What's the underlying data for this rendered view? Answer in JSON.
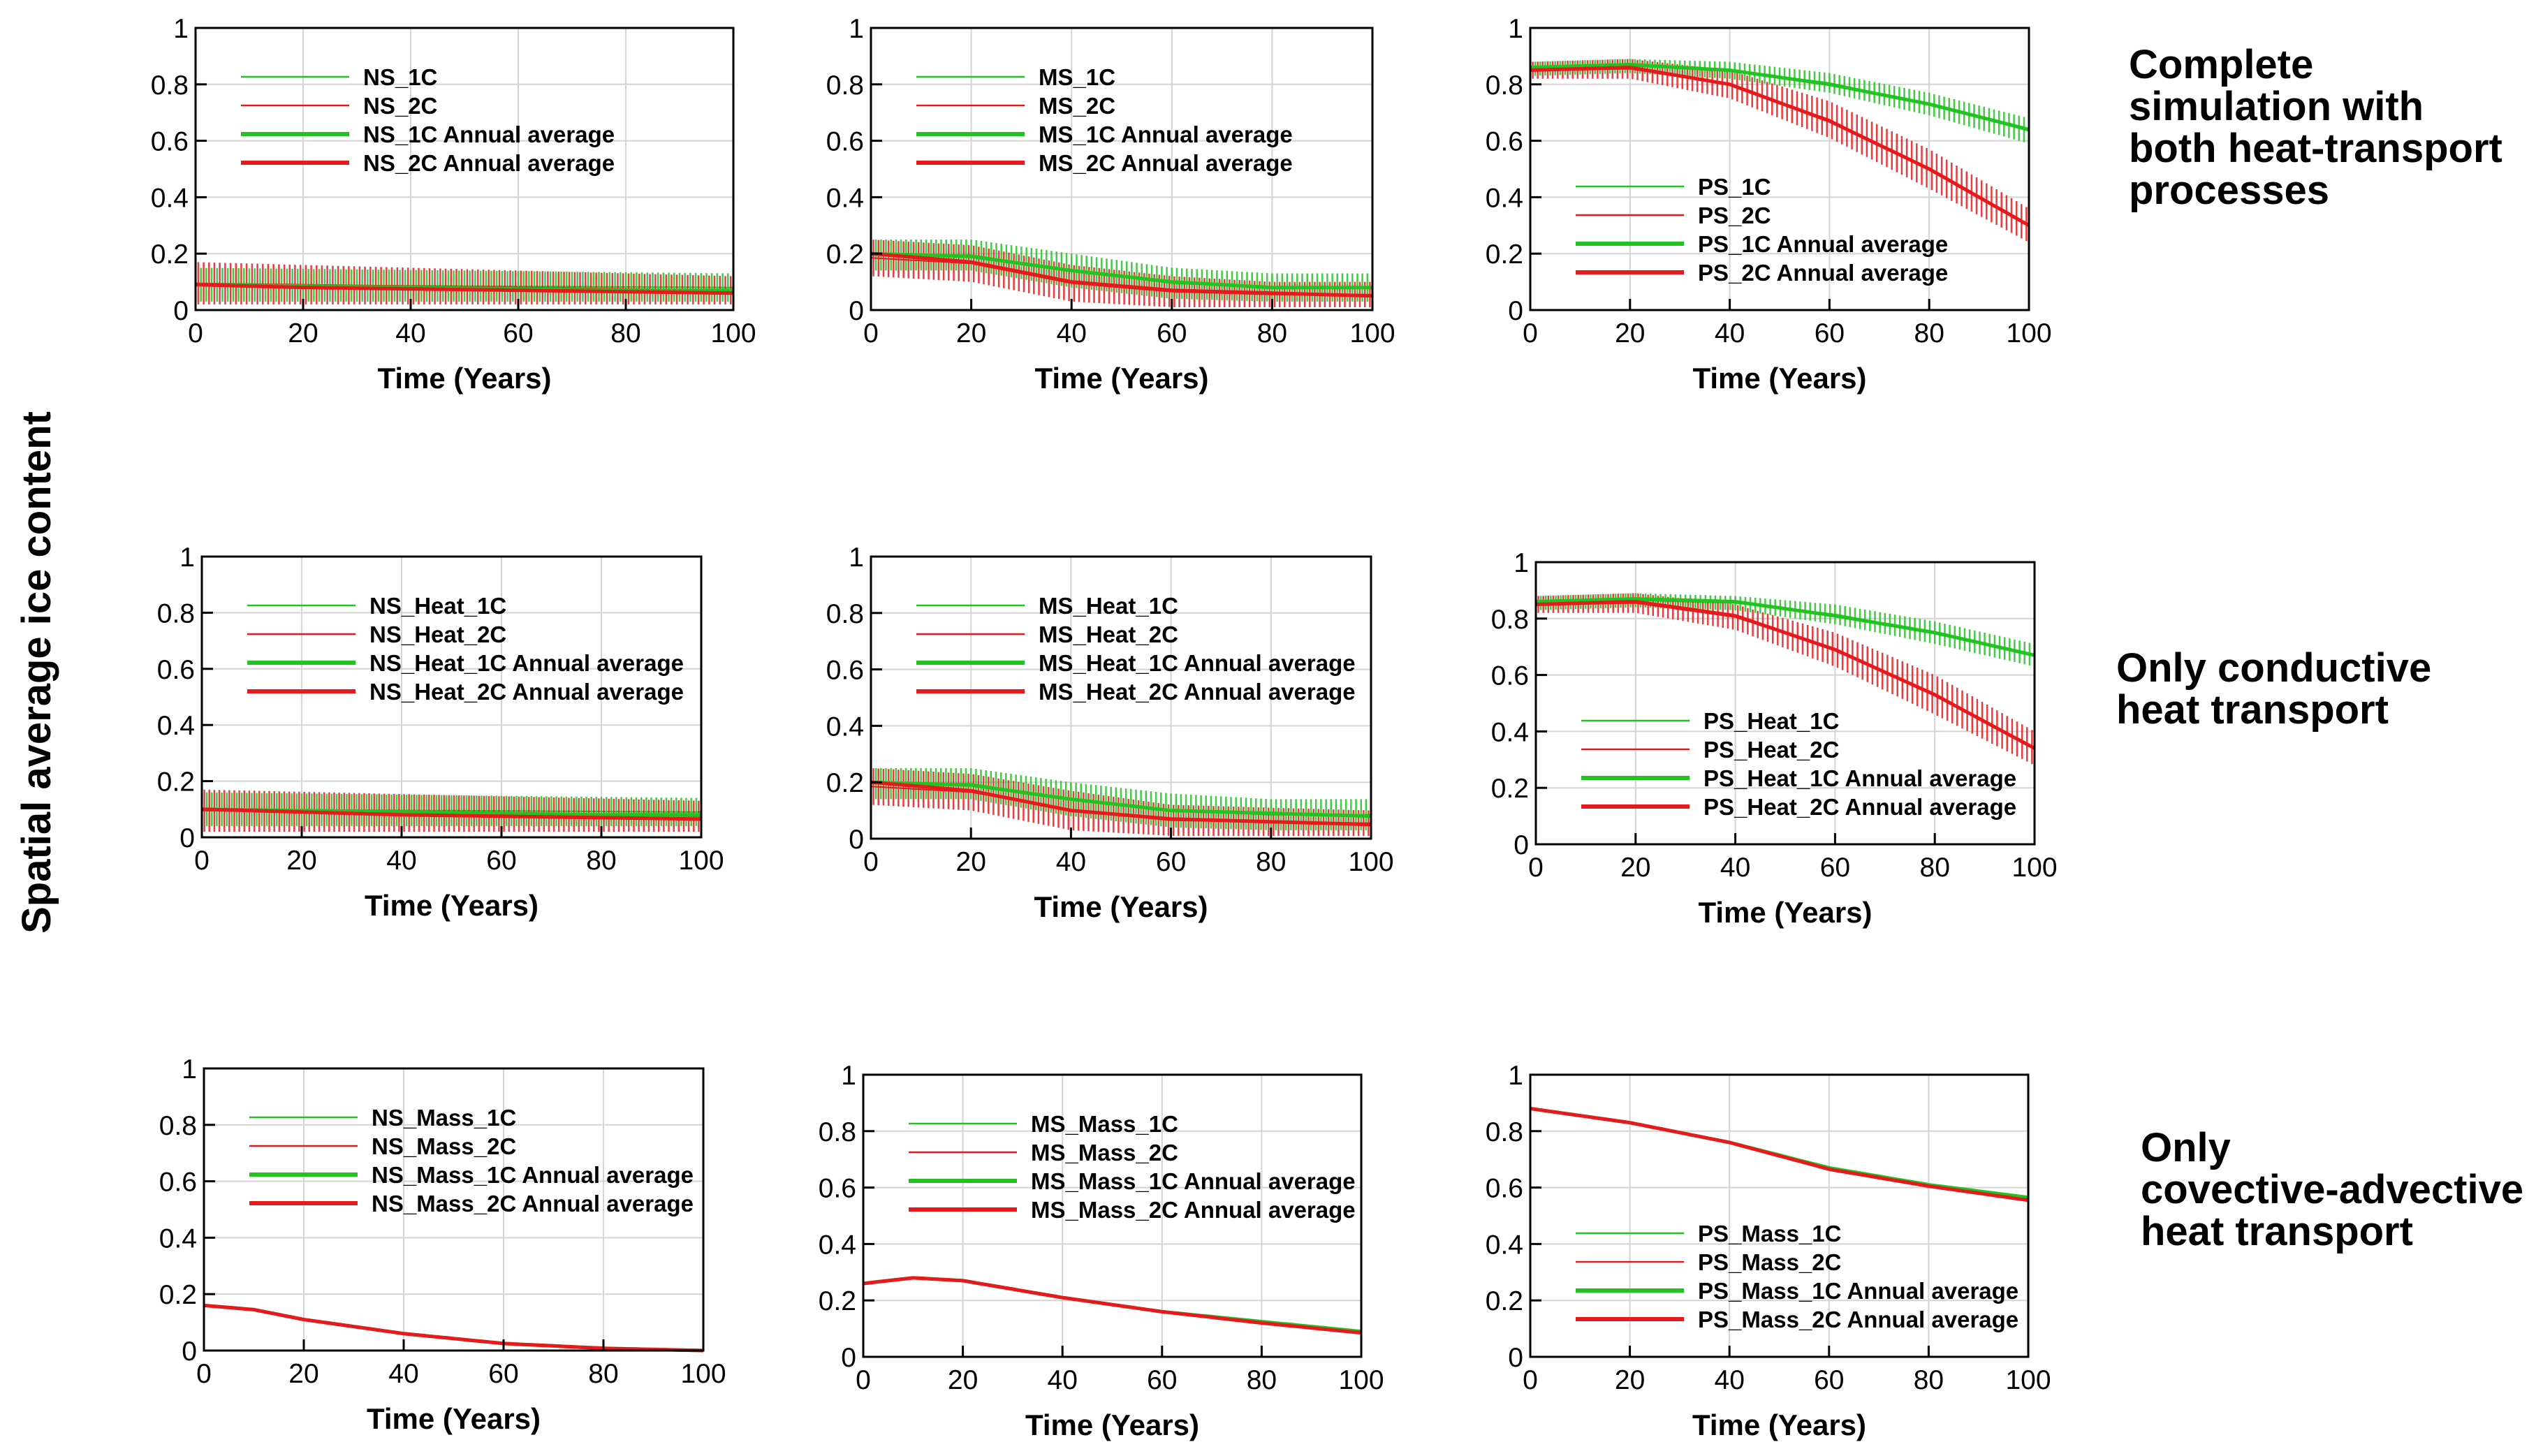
{
  "y_axis_label": "Spatial average ice content",
  "colors": {
    "one_c": "#21c321",
    "two_c": "#e8191c",
    "axis": "#000000",
    "grid": "#d4d4d4"
  },
  "row_labels": [
    [
      "Complete",
      "simulation with",
      "both heat-transport",
      "processes"
    ],
    [
      "Only conductive",
      "heat transport"
    ],
    [
      "Only",
      "covective-advective",
      "heat transport"
    ]
  ],
  "chart_data": [
    {
      "type": "line",
      "xlabel": "Time (Years)",
      "xlim": [
        0,
        100
      ],
      "ylim": [
        0,
        1
      ],
      "xticks": [
        "0",
        "20",
        "40",
        "60",
        "80",
        "100"
      ],
      "yticks": [
        "0",
        "0.2",
        "0.4",
        "0.6",
        "0.8",
        "1"
      ],
      "legend": [
        "NS_1C",
        "NS_2C",
        "NS_1C Annual average",
        "NS_2C Annual average"
      ],
      "legend_position": "top-left",
      "series": [
        {
          "name": "NS_1C",
          "x": [
            0,
            100
          ],
          "y_min": [
            0.03,
            0.03
          ],
          "y_max": [
            0.15,
            0.13
          ]
        },
        {
          "name": "NS_2C",
          "x": [
            0,
            100
          ],
          "y_min": [
            0.02,
            0.02
          ],
          "y_max": [
            0.17,
            0.12
          ]
        },
        {
          "name": "NS_1C Annual average",
          "x": [
            0,
            20,
            40,
            60,
            80,
            100
          ],
          "y": [
            0.09,
            0.085,
            0.08,
            0.075,
            0.07,
            0.07
          ]
        },
        {
          "name": "NS_2C Annual average",
          "x": [
            0,
            20,
            40,
            60,
            80,
            100
          ],
          "y": [
            0.09,
            0.08,
            0.075,
            0.07,
            0.065,
            0.06
          ]
        }
      ]
    },
    {
      "type": "line",
      "xlabel": "Time (Years)",
      "xlim": [
        0,
        100
      ],
      "ylim": [
        0,
        1
      ],
      "xticks": [
        "0",
        "20",
        "40",
        "60",
        "80",
        "100"
      ],
      "yticks": [
        "0",
        "0.2",
        "0.4",
        "0.6",
        "0.8",
        "1"
      ],
      "legend": [
        "MS_1C",
        "MS_2C",
        "MS_1C Annual average",
        "MS_2C Annual average"
      ],
      "legend_position": "top-left",
      "series": [
        {
          "name": "MS_1C",
          "x": [
            0,
            20,
            40,
            60,
            80,
            100
          ],
          "y_min": [
            0.14,
            0.14,
            0.08,
            0.04,
            0.03,
            0.03
          ],
          "y_max": [
            0.25,
            0.25,
            0.2,
            0.15,
            0.13,
            0.13
          ]
        },
        {
          "name": "MS_2C",
          "x": [
            0,
            20,
            40,
            60,
            80,
            100
          ],
          "y_min": [
            0.12,
            0.1,
            0.03,
            0.01,
            0.01,
            0.01
          ],
          "y_max": [
            0.25,
            0.23,
            0.16,
            0.12,
            0.1,
            0.1
          ]
        },
        {
          "name": "MS_1C Annual average",
          "x": [
            0,
            20,
            40,
            60,
            80,
            100
          ],
          "y": [
            0.2,
            0.19,
            0.14,
            0.1,
            0.08,
            0.08
          ]
        },
        {
          "name": "MS_2C Annual average",
          "x": [
            0,
            20,
            40,
            60,
            80,
            100
          ],
          "y": [
            0.2,
            0.17,
            0.1,
            0.07,
            0.06,
            0.05
          ]
        }
      ]
    },
    {
      "type": "line",
      "xlabel": "Time (Years)",
      "xlim": [
        0,
        100
      ],
      "ylim": [
        0,
        1
      ],
      "xticks": [
        "0",
        "20",
        "40",
        "60",
        "80",
        "100"
      ],
      "yticks": [
        "0",
        "0.2",
        "0.4",
        "0.6",
        "0.8",
        "1"
      ],
      "legend": [
        "PS_1C",
        "PS_2C",
        "PS_1C Annual average",
        "PS_2C Annual average"
      ],
      "legend_position": "bottom-left",
      "series": [
        {
          "name": "PS_1C",
          "x": [
            0,
            20,
            40,
            60,
            80,
            100
          ],
          "y_min": [
            0.83,
            0.84,
            0.82,
            0.77,
            0.69,
            0.59
          ],
          "y_max": [
            0.88,
            0.89,
            0.88,
            0.84,
            0.77,
            0.68
          ]
        },
        {
          "name": "PS_2C",
          "x": [
            0,
            20,
            40,
            60,
            80,
            100
          ],
          "y_min": [
            0.82,
            0.82,
            0.75,
            0.61,
            0.43,
            0.24
          ],
          "y_max": [
            0.88,
            0.89,
            0.85,
            0.74,
            0.57,
            0.36
          ]
        },
        {
          "name": "PS_1C Annual average",
          "x": [
            0,
            20,
            40,
            60,
            80,
            100
          ],
          "y": [
            0.86,
            0.87,
            0.85,
            0.8,
            0.73,
            0.64
          ]
        },
        {
          "name": "PS_2C Annual average",
          "x": [
            0,
            20,
            40,
            60,
            80,
            100
          ],
          "y": [
            0.85,
            0.86,
            0.8,
            0.67,
            0.5,
            0.3
          ]
        }
      ]
    },
    {
      "type": "line",
      "xlabel": "Time (Years)",
      "xlim": [
        0,
        100
      ],
      "ylim": [
        0,
        1
      ],
      "xticks": [
        "0",
        "20",
        "40",
        "60",
        "80",
        "100"
      ],
      "yticks": [
        "0",
        "0.2",
        "0.4",
        "0.6",
        "0.8",
        "1"
      ],
      "legend": [
        "NS_Heat_1C",
        "NS_Heat_2C",
        "NS_Heat_1C Annual average",
        "NS_Heat_2C Annual average"
      ],
      "legend_position": "top-left",
      "series": [
        {
          "name": "NS_Heat_1C",
          "x": [
            0,
            100
          ],
          "y_min": [
            0.04,
            0.04
          ],
          "y_max": [
            0.16,
            0.14
          ]
        },
        {
          "name": "NS_Heat_2C",
          "x": [
            0,
            100
          ],
          "y_min": [
            0.02,
            0.02
          ],
          "y_max": [
            0.17,
            0.13
          ]
        },
        {
          "name": "NS_Heat_1C Annual average",
          "x": [
            0,
            20,
            40,
            60,
            80,
            100
          ],
          "y": [
            0.1,
            0.095,
            0.09,
            0.085,
            0.08,
            0.08
          ]
        },
        {
          "name": "NS_Heat_2C Annual average",
          "x": [
            0,
            20,
            40,
            60,
            80,
            100
          ],
          "y": [
            0.1,
            0.09,
            0.08,
            0.075,
            0.07,
            0.065
          ]
        }
      ]
    },
    {
      "type": "line",
      "xlabel": "Time (Years)",
      "xlim": [
        0,
        100
      ],
      "ylim": [
        0,
        1
      ],
      "xticks": [
        "0",
        "20",
        "40",
        "60",
        "80",
        "100"
      ],
      "yticks": [
        "0",
        "0.2",
        "0.4",
        "0.6",
        "0.8",
        "1"
      ],
      "legend": [
        "MS_Heat_1C",
        "MS_Heat_2C",
        "MS_Heat_1C Annual average",
        "MS_Heat_2C Annual average"
      ],
      "legend_position": "top-left",
      "series": [
        {
          "name": "MS_Heat_1C",
          "x": [
            0,
            20,
            40,
            60,
            80,
            100
          ],
          "y_min": [
            0.14,
            0.14,
            0.08,
            0.04,
            0.03,
            0.03
          ],
          "y_max": [
            0.25,
            0.25,
            0.2,
            0.16,
            0.14,
            0.14
          ]
        },
        {
          "name": "MS_Heat_2C",
          "x": [
            0,
            20,
            40,
            60,
            80,
            100
          ],
          "y_min": [
            0.12,
            0.1,
            0.03,
            0.01,
            0.01,
            0.01
          ],
          "y_max": [
            0.25,
            0.23,
            0.17,
            0.12,
            0.11,
            0.1
          ]
        },
        {
          "name": "MS_Heat_1C Annual average",
          "x": [
            0,
            20,
            40,
            60,
            80,
            100
          ],
          "y": [
            0.2,
            0.19,
            0.14,
            0.1,
            0.09,
            0.08
          ]
        },
        {
          "name": "MS_Heat_2C Annual average",
          "x": [
            0,
            20,
            40,
            60,
            80,
            100
          ],
          "y": [
            0.2,
            0.17,
            0.1,
            0.07,
            0.06,
            0.05
          ]
        }
      ]
    },
    {
      "type": "line",
      "xlabel": "Time (Years)",
      "xlim": [
        0,
        100
      ],
      "ylim": [
        0,
        1
      ],
      "xticks": [
        "0",
        "20",
        "40",
        "60",
        "80",
        "100"
      ],
      "yticks": [
        "0",
        "0.2",
        "0.4",
        "0.6",
        "0.8",
        "1"
      ],
      "legend": [
        "PS_Heat_1C",
        "PS_Heat_2C",
        "PS_Heat_1C Annual average",
        "PS_Heat_2C Annual average"
      ],
      "legend_position": "bottom-left",
      "series": [
        {
          "name": "PS_Heat_1C",
          "x": [
            0,
            20,
            40,
            60,
            80,
            100
          ],
          "y_min": [
            0.83,
            0.84,
            0.83,
            0.78,
            0.71,
            0.63
          ],
          "y_max": [
            0.88,
            0.89,
            0.88,
            0.85,
            0.79,
            0.71
          ]
        },
        {
          "name": "PS_Heat_2C",
          "x": [
            0,
            20,
            40,
            60,
            80,
            100
          ],
          "y_min": [
            0.82,
            0.82,
            0.76,
            0.63,
            0.46,
            0.28
          ],
          "y_max": [
            0.88,
            0.89,
            0.85,
            0.75,
            0.6,
            0.4
          ]
        },
        {
          "name": "PS_Heat_1C Annual average",
          "x": [
            0,
            20,
            40,
            60,
            80,
            100
          ],
          "y": [
            0.86,
            0.87,
            0.86,
            0.81,
            0.75,
            0.67
          ]
        },
        {
          "name": "PS_Heat_2C Annual average",
          "x": [
            0,
            20,
            40,
            60,
            80,
            100
          ],
          "y": [
            0.85,
            0.86,
            0.81,
            0.69,
            0.53,
            0.34
          ]
        }
      ]
    },
    {
      "type": "line",
      "xlabel": "Time (Years)",
      "xlim": [
        0,
        100
      ],
      "ylim": [
        0,
        1
      ],
      "xticks": [
        "0",
        "20",
        "40",
        "60",
        "80",
        "100"
      ],
      "yticks": [
        "0",
        "0.2",
        "0.4",
        "0.6",
        "0.8",
        "1"
      ],
      "legend": [
        "NS_Mass_1C",
        "NS_Mass_2C",
        "NS_Mass_1C Annual average",
        "NS_Mass_2C Annual average"
      ],
      "legend_position": "top-left",
      "series": [
        {
          "name": "NS_Mass_1C",
          "x": [
            0,
            10,
            20,
            40,
            60,
            80,
            100
          ],
          "y": [
            0.16,
            0.145,
            0.11,
            0.06,
            0.025,
            0.008,
            0.0
          ]
        },
        {
          "name": "NS_Mass_2C",
          "x": [
            0,
            10,
            20,
            40,
            60,
            80,
            100
          ],
          "y": [
            0.16,
            0.145,
            0.11,
            0.06,
            0.025,
            0.008,
            0.0
          ]
        },
        {
          "name": "NS_Mass_1C Annual average",
          "x": [
            0,
            10,
            20,
            40,
            60,
            80,
            100
          ],
          "y": [
            0.16,
            0.145,
            0.11,
            0.06,
            0.025,
            0.008,
            0.0
          ]
        },
        {
          "name": "NS_Mass_2C Annual average",
          "x": [
            0,
            10,
            20,
            40,
            60,
            80,
            100
          ],
          "y": [
            0.16,
            0.145,
            0.11,
            0.06,
            0.025,
            0.008,
            0.0
          ]
        }
      ]
    },
    {
      "type": "line",
      "xlabel": "Time (Years)",
      "xlim": [
        0,
        100
      ],
      "ylim": [
        0,
        1
      ],
      "xticks": [
        "0",
        "20",
        "40",
        "60",
        "80",
        "100"
      ],
      "yticks": [
        "0",
        "0.2",
        "0.4",
        "0.6",
        "0.8",
        "1"
      ],
      "legend": [
        "MS_Mass_1C",
        "MS_Mass_2C",
        "MS_Mass_1C Annual average",
        "MS_Mass_2C Annual average"
      ],
      "legend_position": "top-left",
      "series": [
        {
          "name": "MS_Mass_1C",
          "x": [
            0,
            10,
            20,
            40,
            60,
            80,
            100
          ],
          "y": [
            0.26,
            0.28,
            0.27,
            0.21,
            0.16,
            0.125,
            0.09
          ]
        },
        {
          "name": "MS_Mass_2C",
          "x": [
            0,
            10,
            20,
            40,
            60,
            80,
            100
          ],
          "y": [
            0.26,
            0.28,
            0.27,
            0.21,
            0.16,
            0.12,
            0.085
          ]
        },
        {
          "name": "MS_Mass_1C Annual average",
          "x": [
            0,
            10,
            20,
            40,
            60,
            80,
            100
          ],
          "y": [
            0.26,
            0.28,
            0.27,
            0.21,
            0.16,
            0.125,
            0.09
          ]
        },
        {
          "name": "MS_Mass_2C Annual average",
          "x": [
            0,
            10,
            20,
            40,
            60,
            80,
            100
          ],
          "y": [
            0.26,
            0.28,
            0.27,
            0.21,
            0.16,
            0.12,
            0.085
          ]
        }
      ]
    },
    {
      "type": "line",
      "xlabel": "Time (Years)",
      "xlim": [
        0,
        100
      ],
      "ylim": [
        0,
        1
      ],
      "xticks": [
        "0",
        "20",
        "40",
        "60",
        "80",
        "100"
      ],
      "yticks": [
        "0",
        "0.2",
        "0.4",
        "0.6",
        "0.8",
        "1"
      ],
      "legend": [
        "PS_Mass_1C",
        "PS_Mass_2C",
        "PS_Mass_1C Annual average",
        "PS_Mass_2C Annual average"
      ],
      "legend_position": "bottom-left",
      "series": [
        {
          "name": "PS_Mass_1C",
          "x": [
            0,
            20,
            40,
            60,
            80,
            100
          ],
          "y": [
            0.88,
            0.83,
            0.76,
            0.67,
            0.61,
            0.565
          ]
        },
        {
          "name": "PS_Mass_2C",
          "x": [
            0,
            20,
            40,
            60,
            80,
            100
          ],
          "y": [
            0.88,
            0.83,
            0.76,
            0.665,
            0.605,
            0.555
          ]
        },
        {
          "name": "PS_Mass_1C Annual average",
          "x": [
            0,
            20,
            40,
            60,
            80,
            100
          ],
          "y": [
            0.88,
            0.83,
            0.76,
            0.67,
            0.61,
            0.565
          ]
        },
        {
          "name": "PS_Mass_2C Annual average",
          "x": [
            0,
            20,
            40,
            60,
            80,
            100
          ],
          "y": [
            0.88,
            0.83,
            0.76,
            0.665,
            0.605,
            0.555
          ]
        }
      ]
    }
  ]
}
